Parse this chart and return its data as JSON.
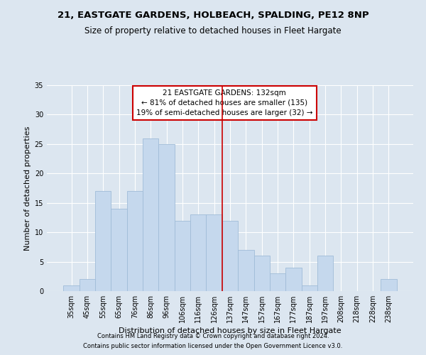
{
  "title1": "21, EASTGATE GARDENS, HOLBEACH, SPALDING, PE12 8NP",
  "title2": "Size of property relative to detached houses in Fleet Hargate",
  "xlabel": "Distribution of detached houses by size in Fleet Hargate",
  "ylabel": "Number of detached properties",
  "footnote1": "Contains HM Land Registry data © Crown copyright and database right 2024.",
  "footnote2": "Contains public sector information licensed under the Open Government Licence v3.0.",
  "categories": [
    "35sqm",
    "45sqm",
    "55sqm",
    "65sqm",
    "76sqm",
    "86sqm",
    "96sqm",
    "106sqm",
    "116sqm",
    "126sqm",
    "137sqm",
    "147sqm",
    "157sqm",
    "167sqm",
    "177sqm",
    "187sqm",
    "197sqm",
    "208sqm",
    "218sqm",
    "228sqm",
    "238sqm"
  ],
  "values": [
    1,
    2,
    17,
    14,
    17,
    26,
    25,
    12,
    13,
    13,
    12,
    7,
    6,
    3,
    4,
    1,
    6,
    0,
    0,
    0,
    2
  ],
  "bar_color": "#c5d8ed",
  "bar_edge_color": "#a0bcd8",
  "vline_index": 10,
  "vline_color": "#cc0000",
  "annotation_title": "21 EASTGATE GARDENS: 132sqm",
  "annotation_line1": "← 81% of detached houses are smaller (135)",
  "annotation_line2": "19% of semi-detached houses are larger (32) →",
  "annotation_box_color": "#cc0000",
  "ylim": [
    0,
    35
  ],
  "yticks": [
    0,
    5,
    10,
    15,
    20,
    25,
    30,
    35
  ],
  "background_color": "#dce6f0",
  "grid_color": "#ffffff",
  "title_fontsize": 9.5,
  "subtitle_fontsize": 8.5,
  "axis_label_fontsize": 8,
  "tick_fontsize": 7,
  "annotation_fontsize": 7.5,
  "footnote_fontsize": 6
}
